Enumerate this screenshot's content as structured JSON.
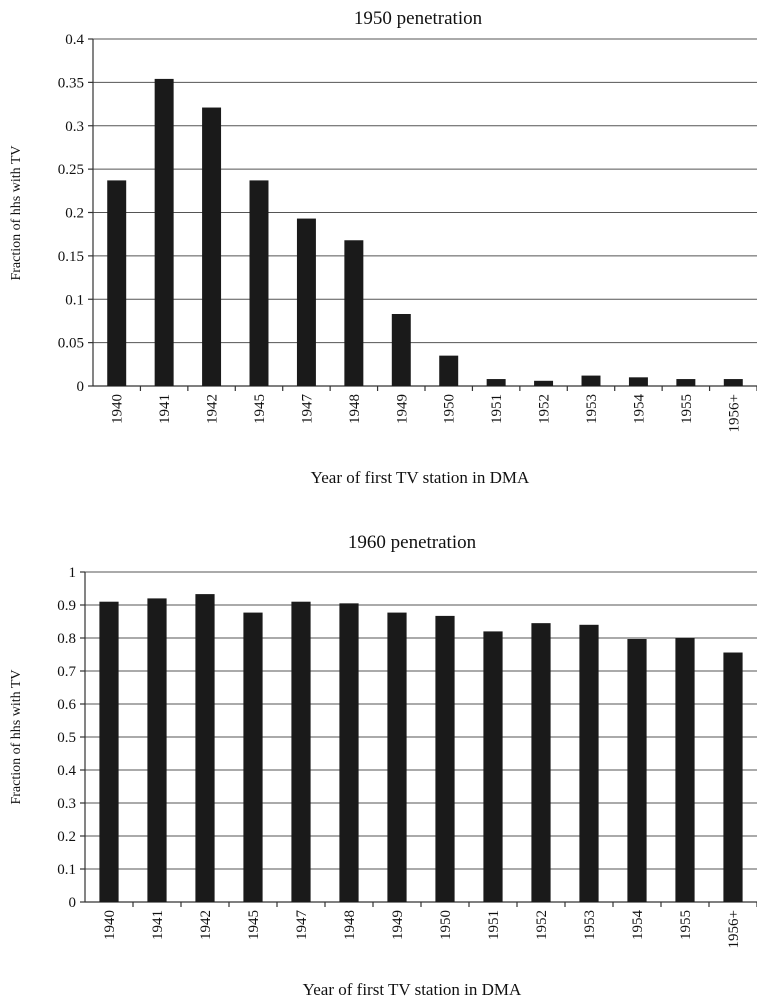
{
  "chart_data": [
    {
      "type": "bar",
      "title": "1950 penetration",
      "xlabel": "Year of first TV station in DMA",
      "ylabel": "Fraction of hhs with TV",
      "categories": [
        "1940",
        "1941",
        "1942",
        "1945",
        "1947",
        "1948",
        "1949",
        "1950",
        "1951",
        "1952",
        "1953",
        "1954",
        "1955",
        "1956+"
      ],
      "values": [
        0.237,
        0.354,
        0.321,
        0.237,
        0.193,
        0.168,
        0.083,
        0.035,
        0.008,
        0.006,
        0.012,
        0.01,
        0.008,
        0.008
      ],
      "ylim": [
        0,
        0.4
      ],
      "yticks": [
        "0",
        "0.05",
        "0.1",
        "0.15",
        "0.2",
        "0.25",
        "0.3",
        "0.35",
        "0.4"
      ],
      "grid": true,
      "legend": false
    },
    {
      "type": "bar",
      "title": "1960 penetration",
      "xlabel": "Year of first TV station in DMA",
      "ylabel": "Fraction of hhs with TV",
      "categories": [
        "1940",
        "1941",
        "1942",
        "1945",
        "1947",
        "1948",
        "1949",
        "1950",
        "1951",
        "1952",
        "1953",
        "1954",
        "1955",
        "1956+"
      ],
      "values": [
        0.91,
        0.92,
        0.933,
        0.877,
        0.91,
        0.905,
        0.877,
        0.867,
        0.82,
        0.845,
        0.84,
        0.797,
        0.8,
        0.756
      ],
      "ylim": [
        0,
        1
      ],
      "yticks": [
        "0",
        "0.1",
        "0.2",
        "0.3",
        "0.4",
        "0.5",
        "0.6",
        "0.7",
        "0.8",
        "0.9",
        "1"
      ],
      "grid": true,
      "legend": false
    }
  ]
}
